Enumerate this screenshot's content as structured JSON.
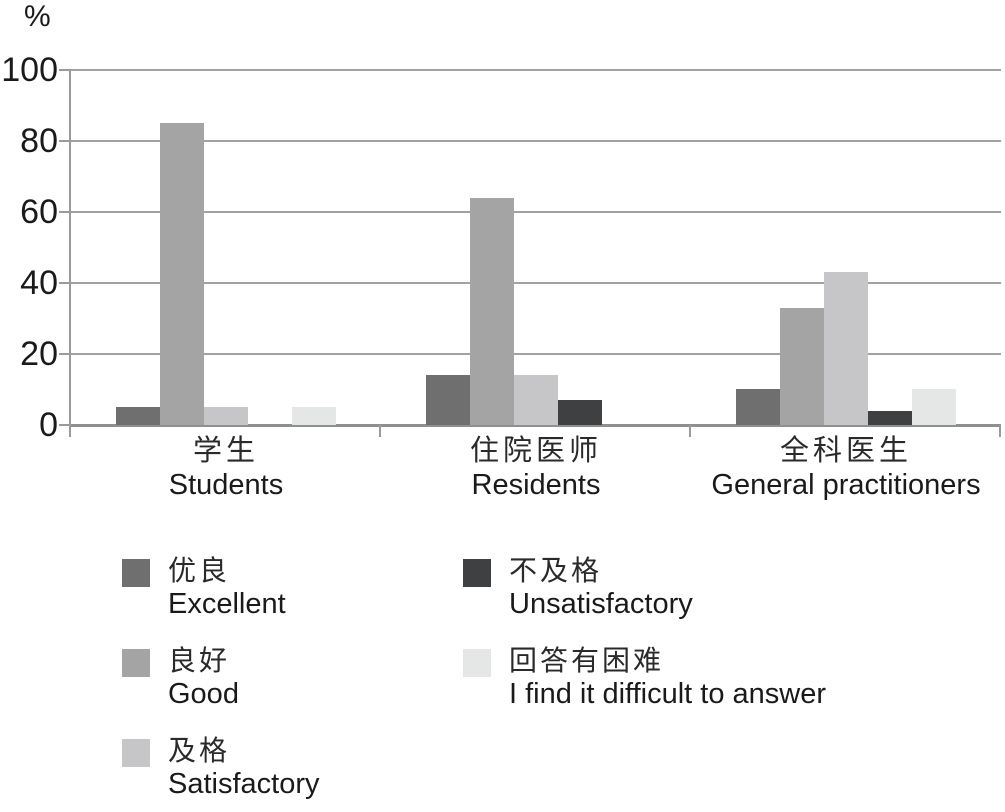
{
  "chart_data": {
    "type": "bar",
    "title": "",
    "unit_label": "%",
    "ylabel": "%",
    "xlabel": "",
    "ylim": [
      0,
      100
    ],
    "yticks": [
      0,
      20,
      40,
      60,
      80,
      100
    ],
    "grid": true,
    "legend_position": "bottom",
    "categories": [
      {
        "zh": "学生",
        "en": "Students"
      },
      {
        "zh": "住院医师",
        "en": "Residents"
      },
      {
        "zh": "全科医生",
        "en": "General practitioners"
      }
    ],
    "series": [
      {
        "name_zh": "优良",
        "name_en": "Excellent",
        "color": "#6f6f6f",
        "values": [
          5,
          14,
          10
        ]
      },
      {
        "name_zh": "良好",
        "name_en": "Good",
        "color": "#a4a4a4",
        "values": [
          85,
          64,
          33
        ]
      },
      {
        "name_zh": "及格",
        "name_en": "Satisfactory",
        "color": "#c6c6c8",
        "values": [
          5,
          14,
          43
        ]
      },
      {
        "name_zh": "不及格",
        "name_en": "Unsatisfactory",
        "color": "#3e4042",
        "values": [
          0,
          7,
          4
        ]
      },
      {
        "name_zh": "回答有困难",
        "name_en": "I find it difficult to answer",
        "color": "#e5e6e6",
        "values": [
          5,
          0,
          10
        ]
      }
    ],
    "legend_columns": [
      [
        0,
        1,
        2
      ],
      [
        3,
        4
      ]
    ],
    "colors": {
      "gridline": "#a2a2a2",
      "axis": "#9a9a9a",
      "text": "#1a1a1a"
    }
  }
}
